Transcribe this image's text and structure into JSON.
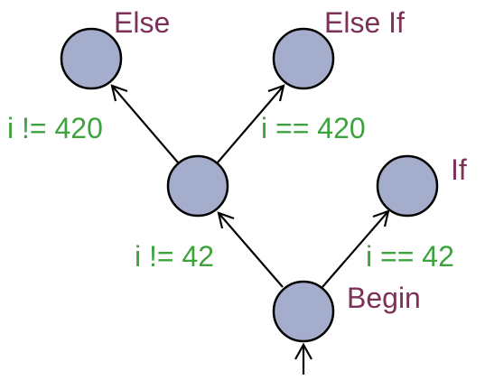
{
  "colors": {
    "node_fill": "#a5adcc",
    "node_label": "#7d3058",
    "edge_label": "#3ea33e"
  },
  "nodes": [
    {
      "id": "begin",
      "label": "Begin"
    },
    {
      "id": "branch",
      "label": ""
    },
    {
      "id": "if",
      "label": "If"
    },
    {
      "id": "else",
      "label": "Else"
    },
    {
      "id": "else_if",
      "label": "Else If"
    }
  ],
  "edges": [
    {
      "from": "begin",
      "to": "branch",
      "label": "i != 42"
    },
    {
      "from": "begin",
      "to": "if",
      "label": "i == 42"
    },
    {
      "from": "branch",
      "to": "else",
      "label": "i != 420"
    },
    {
      "from": "branch",
      "to": "else_if",
      "label": "i == 420"
    }
  ]
}
